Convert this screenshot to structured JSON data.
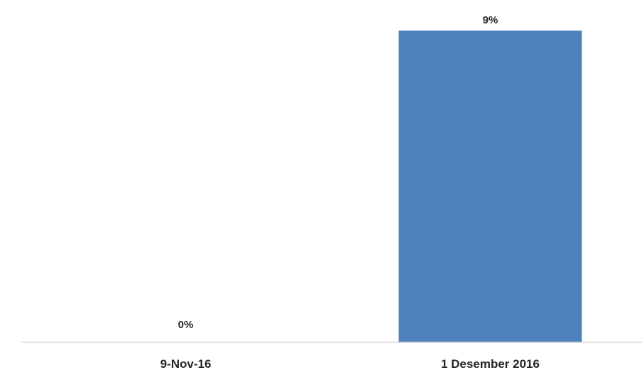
{
  "chart_data": {
    "type": "bar",
    "categories": [
      "9-Nov-16",
      "1 Desember 2016"
    ],
    "values": [
      0,
      9
    ],
    "data_labels": [
      "0%",
      "9%"
    ],
    "unit": "%",
    "title": "",
    "xlabel": "",
    "ylabel": "",
    "ylim": [
      0,
      9
    ],
    "grid": false,
    "legend": "none",
    "y_axis_visible": false,
    "colors": {
      "bar": "#4F81BD",
      "axis": "#D9D9D9",
      "text": "#262626"
    }
  }
}
